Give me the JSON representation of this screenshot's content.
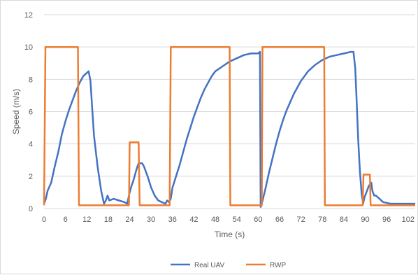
{
  "chart_data": {
    "type": "line",
    "title": "",
    "xlabel": "Time (s)",
    "ylabel": "Speed (m/s)",
    "xlim": [
      0,
      104
    ],
    "ylim": [
      0,
      12
    ],
    "x_ticks": [
      0,
      6,
      12,
      18,
      24,
      30,
      36,
      42,
      48,
      54,
      60,
      66,
      72,
      78,
      84,
      90,
      96,
      102
    ],
    "y_ticks": [
      0,
      2,
      4,
      6,
      8,
      10,
      12
    ],
    "grid": "horizontal",
    "legend_position": "bottom",
    "series": [
      {
        "name": "Real UAV",
        "color": "#4472C4",
        "points": [
          [
            0,
            0.3
          ],
          [
            0.5,
            0.6
          ],
          [
            1,
            1.1
          ],
          [
            2,
            1.6
          ],
          [
            3,
            2.6
          ],
          [
            4,
            3.5
          ],
          [
            5,
            4.6
          ],
          [
            6,
            5.4
          ],
          [
            7,
            6.1
          ],
          [
            8,
            6.7
          ],
          [
            9,
            7.3
          ],
          [
            10,
            7.8
          ],
          [
            11,
            8.2
          ],
          [
            12,
            8.4
          ],
          [
            12.5,
            8.5
          ],
          [
            13,
            7.9
          ],
          [
            13.5,
            6.2
          ],
          [
            14,
            4.5
          ],
          [
            15,
            2.6
          ],
          [
            16,
            1.1
          ],
          [
            16.8,
            0.3
          ],
          [
            17.3,
            0.5
          ],
          [
            17.8,
            0.8
          ],
          [
            18.3,
            0.5
          ],
          [
            19.5,
            0.6
          ],
          [
            21,
            0.5
          ],
          [
            22.5,
            0.4
          ],
          [
            23.3,
            0.3
          ],
          [
            24,
            1.0
          ],
          [
            24.5,
            1.4
          ],
          [
            25,
            1.7
          ],
          [
            25.5,
            2.1
          ],
          [
            26,
            2.5
          ],
          [
            26.5,
            2.8
          ],
          [
            27.5,
            2.8
          ],
          [
            28,
            2.6
          ],
          [
            29,
            2.0
          ],
          [
            30,
            1.3
          ],
          [
            31,
            0.8
          ],
          [
            32,
            0.5
          ],
          [
            33,
            0.4
          ],
          [
            34,
            0.3
          ],
          [
            34.5,
            0.5
          ],
          [
            35,
            0.4
          ],
          [
            35.5,
            0.6
          ],
          [
            36,
            1.3
          ],
          [
            37,
            2.0
          ],
          [
            38,
            2.7
          ],
          [
            39,
            3.5
          ],
          [
            40,
            4.3
          ],
          [
            41,
            5.0
          ],
          [
            42,
            5.7
          ],
          [
            43,
            6.3
          ],
          [
            44,
            6.9
          ],
          [
            45,
            7.4
          ],
          [
            46,
            7.8
          ],
          [
            47,
            8.2
          ],
          [
            48,
            8.5
          ],
          [
            50,
            8.8
          ],
          [
            52,
            9.1
          ],
          [
            54,
            9.3
          ],
          [
            56,
            9.5
          ],
          [
            58,
            9.6
          ],
          [
            60,
            9.6
          ],
          [
            60.5,
            9.7
          ],
          [
            60.7,
            0.1
          ],
          [
            61,
            0.3
          ],
          [
            62,
            1.2
          ],
          [
            63,
            2.2
          ],
          [
            64,
            3.1
          ],
          [
            65,
            4.0
          ],
          [
            66,
            4.8
          ],
          [
            67,
            5.5
          ],
          [
            68,
            6.1
          ],
          [
            69,
            6.6
          ],
          [
            70,
            7.1
          ],
          [
            72,
            7.9
          ],
          [
            74,
            8.5
          ],
          [
            76,
            8.9
          ],
          [
            78,
            9.2
          ],
          [
            80,
            9.4
          ],
          [
            82,
            9.5
          ],
          [
            84,
            9.6
          ],
          [
            86,
            9.7
          ],
          [
            86.7,
            9.7
          ],
          [
            87.2,
            8.7
          ],
          [
            87.6,
            6.6
          ],
          [
            88,
            4.4
          ],
          [
            88.5,
            2.3
          ],
          [
            89,
            0.9
          ],
          [
            89.4,
            0.3
          ],
          [
            89.8,
            0.7
          ],
          [
            90.5,
            1.1
          ],
          [
            91,
            1.4
          ],
          [
            91.7,
            1.6
          ],
          [
            92,
            1.1
          ],
          [
            92.5,
            0.8
          ],
          [
            93,
            0.8
          ],
          [
            94,
            0.6
          ],
          [
            95,
            0.4
          ],
          [
            97,
            0.3
          ],
          [
            104,
            0.3
          ]
        ]
      },
      {
        "name": "RWP",
        "color": "#ED7D31",
        "points": [
          [
            0,
            0.2
          ],
          [
            0.4,
            10
          ],
          [
            9.5,
            10
          ],
          [
            9.8,
            0.2
          ],
          [
            23.8,
            0.2
          ],
          [
            24,
            4.1
          ],
          [
            26.5,
            4.1
          ],
          [
            26.8,
            0.2
          ],
          [
            35.2,
            0.2
          ],
          [
            35.5,
            10
          ],
          [
            52,
            10
          ],
          [
            52.2,
            0.2
          ],
          [
            61,
            0.2
          ],
          [
            61.2,
            10
          ],
          [
            78.5,
            10
          ],
          [
            78.7,
            0.2
          ],
          [
            89.3,
            0.2
          ],
          [
            89.5,
            2.1
          ],
          [
            91.3,
            2.1
          ],
          [
            91.5,
            0.2
          ],
          [
            104,
            0.2
          ]
        ]
      }
    ]
  }
}
